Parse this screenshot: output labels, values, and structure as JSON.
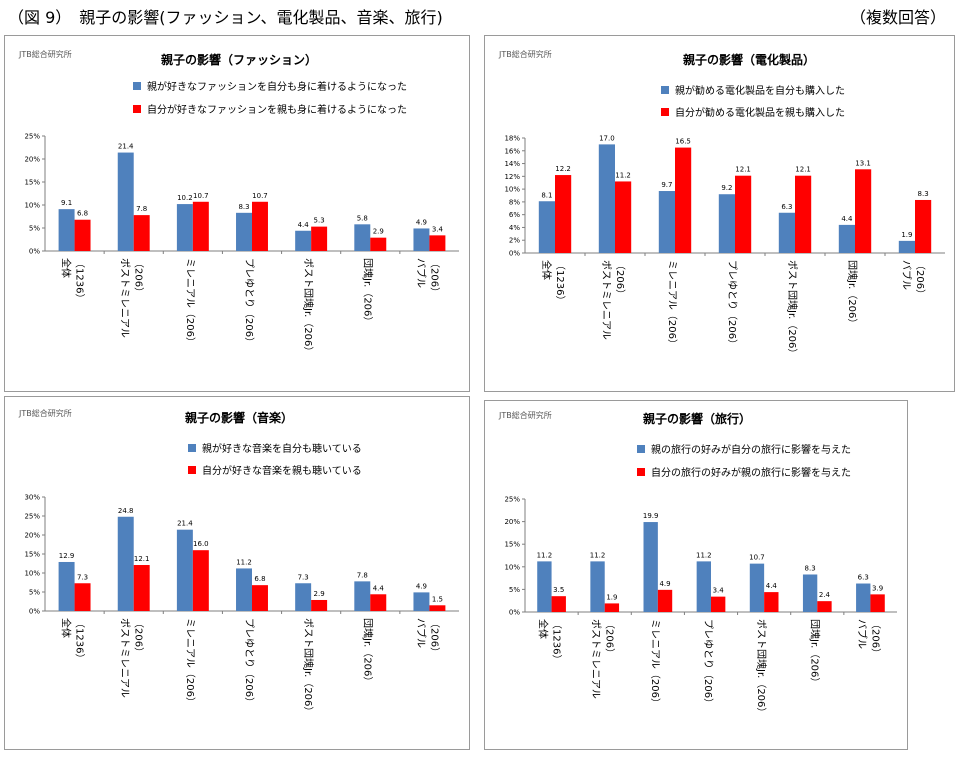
{
  "header": {
    "title": "（図 9）　親子の影響(ファッション、電化製品、音楽、旅行)",
    "note": "（複数回答）"
  },
  "colors": {
    "series1": "#4F81BD",
    "series2": "#FF0000"
  },
  "categories": [
    [
      "全体",
      "（1236）"
    ],
    [
      "ポストミレニアル",
      "（206）"
    ],
    [
      "ミレニアル（206）"
    ],
    [
      "プレゆとり（206）"
    ],
    [
      "ポスト団塊Jr.（206）"
    ],
    [
      "団塊Jr.（206）"
    ],
    [
      "バブル",
      "（206）"
    ]
  ],
  "chart_data": [
    {
      "type": "bar",
      "source": "JTB総合研究所",
      "title": "親子の影響（ファッション）",
      "categories": [
        "全体（1236）",
        "ポストミレニアル（206）",
        "ミレニアル（206）",
        "プレゆとり（206）",
        "ポスト団塊Jr.（206）",
        "団塊Jr.（206）",
        "バブル（206）"
      ],
      "series": [
        {
          "name": "親が好きなファッションを自分も身に着けるようになった",
          "values": [
            9.1,
            21.4,
            10.2,
            8.3,
            4.4,
            5.8,
            4.9
          ]
        },
        {
          "name": "自分が好きなファッションを親も身に着けるようになった",
          "values": [
            6.8,
            7.8,
            10.7,
            10.7,
            5.3,
            2.9,
            3.4
          ]
        }
      ],
      "ylim": [
        0,
        25
      ],
      "yticks": [
        "0%",
        "5%",
        "10%",
        "15%",
        "20%",
        "25%"
      ]
    },
    {
      "type": "bar",
      "source": "JTB総合研究所",
      "title": "親子の影響（電化製品）",
      "categories": [
        "全体（1236）",
        "ポストミレニアル（206）",
        "ミレニアル（206）",
        "プレゆとり（206）",
        "ポスト団塊Jr.（206）",
        "団塊Jr.（206）",
        "バブル（206）"
      ],
      "series": [
        {
          "name": "親が勧める電化製品を自分も購入した",
          "values": [
            8.1,
            17.0,
            9.7,
            9.2,
            6.3,
            4.4,
            1.9
          ]
        },
        {
          "name": "自分が勧める電化製品を親も購入した",
          "values": [
            12.2,
            11.2,
            16.5,
            12.1,
            12.1,
            13.1,
            8.3
          ]
        }
      ],
      "ylim": [
        0,
        18
      ],
      "yticks": [
        "0%",
        "2%",
        "4%",
        "6%",
        "8%",
        "10%",
        "12%",
        "14%",
        "16%",
        "18%"
      ]
    },
    {
      "type": "bar",
      "source": "JTB総合研究所",
      "title": "親子の影響（音楽）",
      "categories": [
        "全体（1236）",
        "ポストミレニアル（206）",
        "ミレニアル（206）",
        "プレゆとり（206）",
        "ポスト団塊Jr.（206）",
        "団塊Jr.（206）",
        "バブル（206）"
      ],
      "series": [
        {
          "name": "親が好きな音楽を自分も聴いている",
          "values": [
            12.9,
            24.8,
            21.4,
            11.2,
            7.3,
            7.8,
            4.9
          ]
        },
        {
          "name": "自分が好きな音楽を親も聴いている",
          "values": [
            7.3,
            12.1,
            16.0,
            6.8,
            2.9,
            4.4,
            1.5
          ]
        }
      ],
      "ylim": [
        0,
        30
      ],
      "yticks": [
        "0%",
        "5%",
        "10%",
        "15%",
        "20%",
        "25%",
        "30%"
      ]
    },
    {
      "type": "bar",
      "source": "JTB総合研究所",
      "title": "親子の影響（旅行）",
      "categories": [
        "全体（1236）",
        "ポストミレニアル（206）",
        "ミレニアル（206）",
        "プレゆとり（206）",
        "ポスト団塊Jr.（206）",
        "団塊Jr.（206）",
        "バブル（206）"
      ],
      "series": [
        {
          "name": "親の旅行の好みが自分の旅行に影響を与えた",
          "values": [
            11.2,
            11.2,
            19.9,
            11.2,
            10.7,
            8.3,
            6.3
          ]
        },
        {
          "name": "自分の旅行の好みが親の旅行に影響を与えた",
          "values": [
            3.5,
            1.9,
            4.9,
            3.4,
            4.4,
            2.4,
            3.9
          ]
        }
      ],
      "ylim": [
        0,
        25
      ],
      "yticks": [
        "0%",
        "5%",
        "10%",
        "15%",
        "20%",
        "25%"
      ]
    }
  ]
}
